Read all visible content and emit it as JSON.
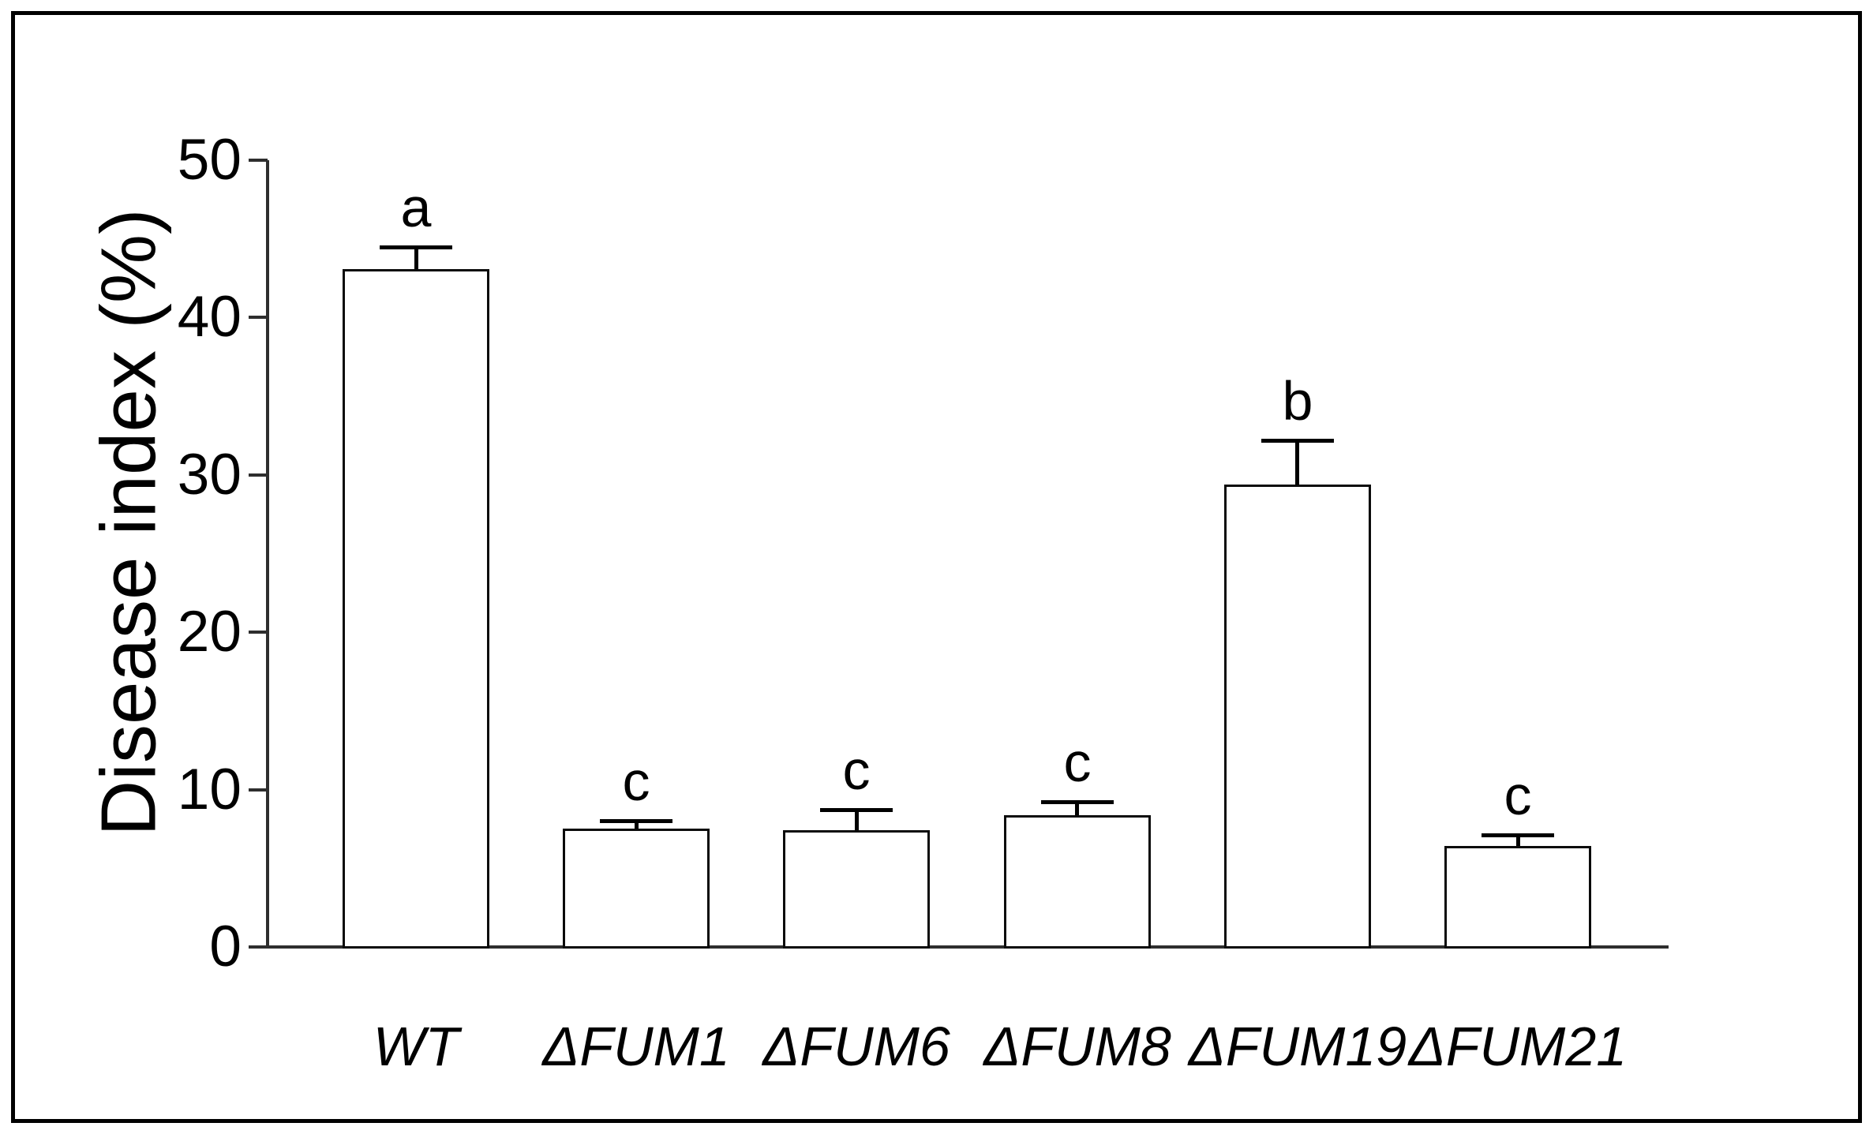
{
  "figure": {
    "background_color": "#ffffff",
    "frame_color": "#000000",
    "axis_color": "#2e2e2e"
  },
  "chart_data": {
    "type": "bar",
    "title": "",
    "xlabel": "",
    "ylabel": "Disease index (%)",
    "ylim": [
      0,
      50
    ],
    "yticks": [
      0,
      10,
      20,
      30,
      40,
      50
    ],
    "grid": false,
    "legend": null,
    "bar_fill": "#ffffff",
    "bar_edge": "#0a0a0a",
    "categories": [
      "WT",
      "ΔFUM1",
      "ΔFUM6",
      "ΔFUM8",
      "ΔFUM19",
      "ΔFUM21"
    ],
    "values": [
      43.1,
      7.5,
      7.4,
      8.4,
      29.4,
      6.4
    ],
    "error_bars": [
      1.4,
      0.5,
      1.35,
      0.85,
      2.8,
      0.7
    ],
    "sig_letters": [
      "a",
      "c",
      "c",
      "c",
      "b",
      "c"
    ]
  }
}
